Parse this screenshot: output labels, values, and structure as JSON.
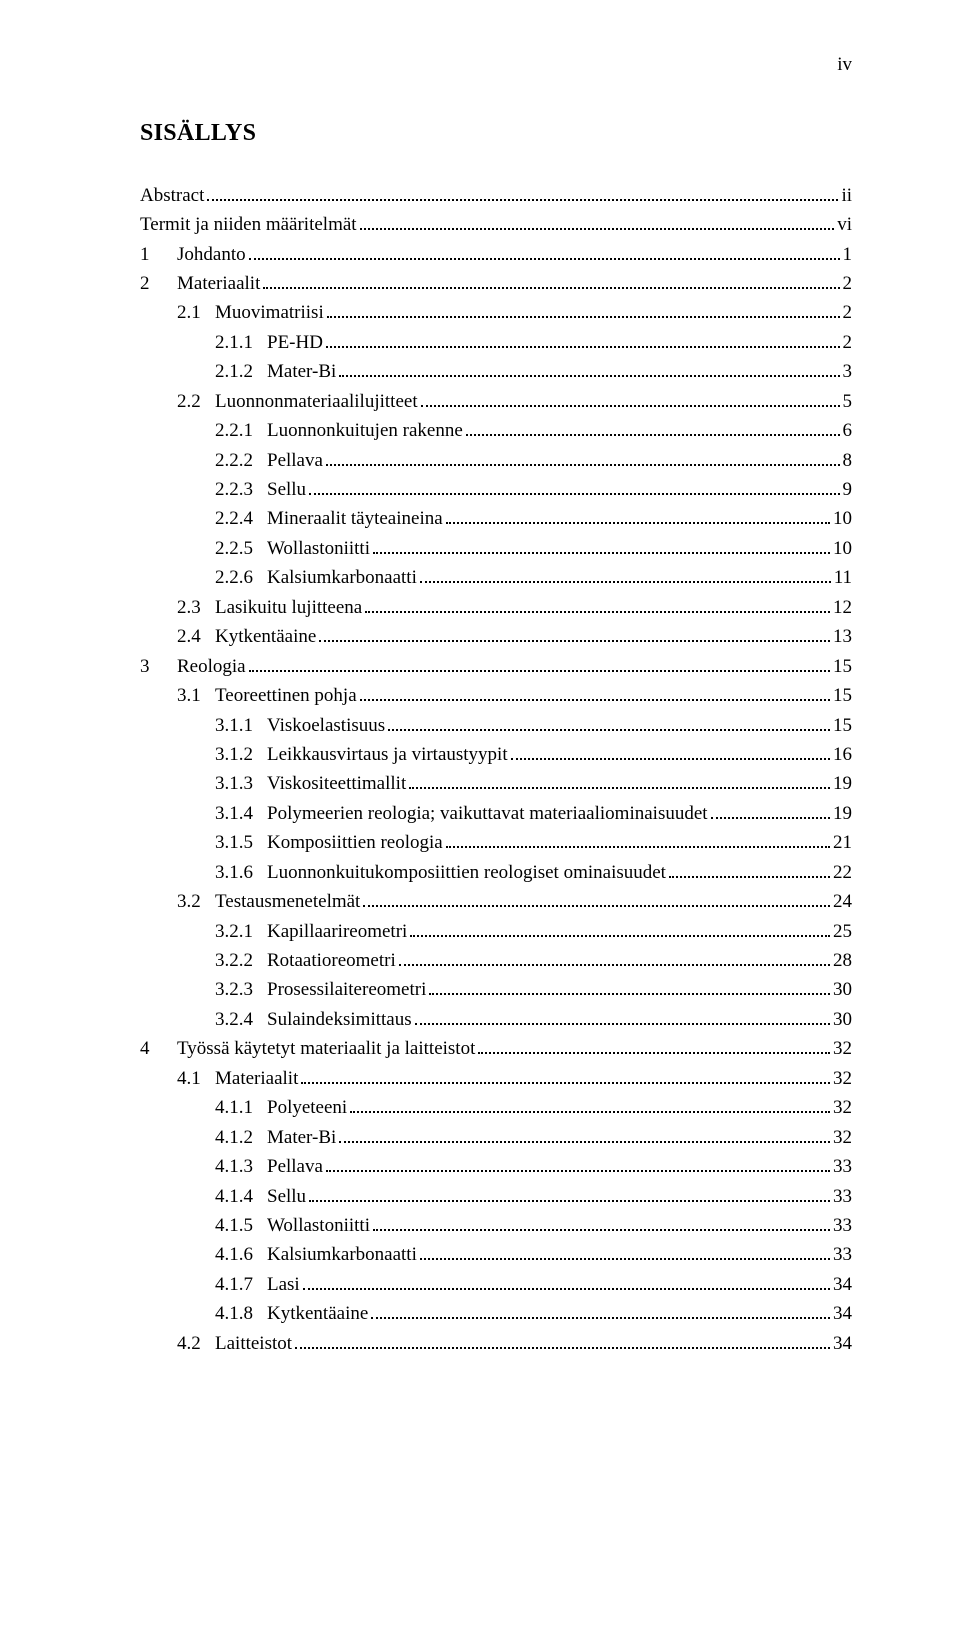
{
  "page_number_label": "iv",
  "title": "SISÄLLYS",
  "entries": [
    {
      "indent": 0,
      "num": "",
      "label": "Abstract",
      "page": "ii"
    },
    {
      "indent": 0,
      "num": "",
      "label": "Termit ja niiden määritelmät",
      "page": "vi"
    },
    {
      "indent": 0,
      "num": "1",
      "label": "Johdanto",
      "page": "1"
    },
    {
      "indent": 0,
      "num": "2",
      "label": "Materiaalit",
      "page": "2"
    },
    {
      "indent": 1,
      "num": "2.1",
      "label": "Muovimatriisi",
      "page": "2"
    },
    {
      "indent": 2,
      "num": "2.1.1",
      "label": "PE-HD",
      "page": "2"
    },
    {
      "indent": 2,
      "num": "2.1.2",
      "label": "Mater-Bi",
      "page": "3"
    },
    {
      "indent": 1,
      "num": "2.2",
      "label": "Luonnonmateriaalilujitteet",
      "page": "5"
    },
    {
      "indent": 2,
      "num": "2.2.1",
      "label": "Luonnonkuitujen rakenne",
      "page": "6"
    },
    {
      "indent": 2,
      "num": "2.2.2",
      "label": "Pellava",
      "page": "8"
    },
    {
      "indent": 2,
      "num": "2.2.3",
      "label": "Sellu",
      "page": "9"
    },
    {
      "indent": 2,
      "num": "2.2.4",
      "label": "Mineraalit täyteaineina",
      "page": "10"
    },
    {
      "indent": 2,
      "num": "2.2.5",
      "label": "Wollastoniitti",
      "page": "10"
    },
    {
      "indent": 2,
      "num": "2.2.6",
      "label": "Kalsiumkarbonaatti",
      "page": "11"
    },
    {
      "indent": 1,
      "num": "2.3",
      "label": "Lasikuitu lujitteena",
      "page": "12"
    },
    {
      "indent": 1,
      "num": "2.4",
      "label": "Kytkentäaine",
      "page": "13"
    },
    {
      "indent": 0,
      "num": "3",
      "label": "Reologia",
      "page": "15"
    },
    {
      "indent": 1,
      "num": "3.1",
      "label": "Teoreettinen pohja",
      "page": "15"
    },
    {
      "indent": 2,
      "num": "3.1.1",
      "label": "Viskoelastisuus",
      "page": "15"
    },
    {
      "indent": 2,
      "num": "3.1.2",
      "label": "Leikkausvirtaus ja virtaustyypit",
      "page": "16"
    },
    {
      "indent": 2,
      "num": "3.1.3",
      "label": "Viskositeettimallit",
      "page": "19"
    },
    {
      "indent": 2,
      "num": "3.1.4",
      "label": "Polymeerien reologia; vaikuttavat materiaaliominaisuudet",
      "page": "19"
    },
    {
      "indent": 2,
      "num": "3.1.5",
      "label": "Komposiittien reologia",
      "page": "21"
    },
    {
      "indent": 2,
      "num": "3.1.6",
      "label": "Luonnonkuitukomposiittien reologiset ominaisuudet",
      "page": "22"
    },
    {
      "indent": 1,
      "num": "3.2",
      "label": "Testausmenetelmät",
      "page": "24"
    },
    {
      "indent": 2,
      "num": "3.2.1",
      "label": "Kapillaarireometri",
      "page": "25"
    },
    {
      "indent": 2,
      "num": "3.2.2",
      "label": "Rotaatioreometri",
      "page": "28"
    },
    {
      "indent": 2,
      "num": "3.2.3",
      "label": "Prosessilaitereometri",
      "page": "30"
    },
    {
      "indent": 2,
      "num": "3.2.4",
      "label": "Sulaindeksimittaus",
      "page": "30"
    },
    {
      "indent": 0,
      "num": "4",
      "label": "Työssä käytetyt materiaalit ja laitteistot",
      "page": "32"
    },
    {
      "indent": 1,
      "num": "4.1",
      "label": "Materiaalit",
      "page": "32"
    },
    {
      "indent": 2,
      "num": "4.1.1",
      "label": "Polyeteeni",
      "page": "32"
    },
    {
      "indent": 2,
      "num": "4.1.2",
      "label": "Mater-Bi",
      "page": "32"
    },
    {
      "indent": 2,
      "num": "4.1.3",
      "label": "Pellava",
      "page": "33"
    },
    {
      "indent": 2,
      "num": "4.1.4",
      "label": "Sellu",
      "page": "33"
    },
    {
      "indent": 2,
      "num": "4.1.5",
      "label": "Wollastoniitti",
      "page": "33"
    },
    {
      "indent": 2,
      "num": "4.1.6",
      "label": "Kalsiumkarbonaatti",
      "page": "33"
    },
    {
      "indent": 2,
      "num": "4.1.7",
      "label": "Lasi",
      "page": "34"
    },
    {
      "indent": 2,
      "num": "4.1.8",
      "label": "Kytkentäaine",
      "page": "34"
    },
    {
      "indent": 1,
      "num": "4.2",
      "label": "Laitteistot",
      "page": "34"
    }
  ]
}
